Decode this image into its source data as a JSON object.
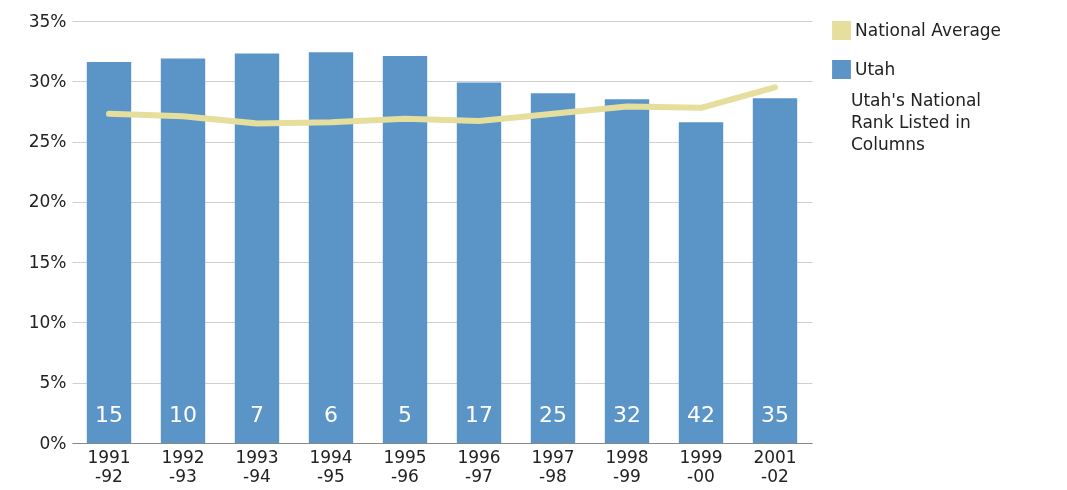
{
  "chart_data": {
    "type": "bar",
    "categories": [
      "1991-92",
      "1992-93",
      "1993-94",
      "1994-95",
      "1995-96",
      "1996-97",
      "1997-98",
      "1998-99",
      "1999-00",
      "2001-02"
    ],
    "series": [
      {
        "name": "Utah",
        "color": "#5b95c8",
        "values": [
          31.6,
          31.9,
          32.3,
          32.4,
          32.1,
          29.9,
          29.0,
          28.5,
          26.6,
          28.6
        ]
      },
      {
        "name": "National Average",
        "type": "line",
        "color": "#e6de9c",
        "values": [
          27.3,
          27.1,
          26.5,
          26.6,
          26.9,
          26.7,
          27.3,
          27.9,
          27.8,
          29.5
        ]
      }
    ],
    "ylim": [
      0,
      35
    ],
    "yticks": [
      {
        "value": 0,
        "label": "0%"
      },
      {
        "value": 5,
        "label": "5%"
      },
      {
        "value": 10,
        "label": "10%"
      },
      {
        "value": 15,
        "label": "15%"
      },
      {
        "value": 20,
        "label": "20%"
      },
      {
        "value": 25,
        "label": "25%"
      },
      {
        "value": 30,
        "label": "30%"
      },
      {
        "value": 35,
        "label": "35%"
      }
    ],
    "grid": "y",
    "legend": "top right",
    "marker": "none",
    "line_style": "solid",
    "annotations": [
      "15",
      "10",
      "7",
      "6",
      "5",
      "17",
      "25",
      "32",
      "42",
      "35",
      "Utah's National Rank Listed in Columns"
    ]
  }
}
